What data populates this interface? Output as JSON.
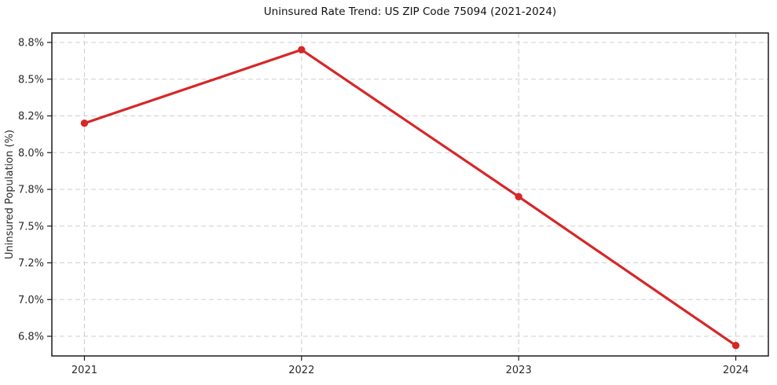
{
  "chart_data": {
    "type": "line",
    "title": "Uninsured Rate Trend: US ZIP Code 75094 (2021-2024)",
    "xlabel": "",
    "ylabel": "Uninsured Population (%)",
    "x": [
      2021,
      2022,
      2023,
      2024
    ],
    "x_tick_labels": [
      "2021",
      "2022",
      "2023",
      "2024"
    ],
    "xlim": [
      2020.85,
      2024.15
    ],
    "y_ticks": [
      {
        "label": "8.8%",
        "value": 8.8
      },
      {
        "label": "8.5%",
        "value": 8.5
      },
      {
        "label": "8.2%",
        "value": 8.2
      },
      {
        "label": "8.0%",
        "value": 8.0
      },
      {
        "label": "7.8%",
        "value": 7.8
      },
      {
        "label": "7.5%",
        "value": 7.5
      },
      {
        "label": "7.2%",
        "value": 7.2
      },
      {
        "label": "7.0%",
        "value": 7.0
      },
      {
        "label": "6.8%",
        "value": 6.8
      }
    ],
    "series": [
      {
        "name": "Uninsured Population (%)",
        "color": "#d62728",
        "marker": "circle",
        "points": [
          {
            "x": 2021,
            "y": 8.16
          },
          {
            "x": 2022,
            "y": 8.74
          },
          {
            "x": 2023,
            "y": 7.74
          },
          {
            "x": 2024,
            "y": 6.75
          }
        ]
      }
    ],
    "grid": true,
    "grid_style": "dashed",
    "legend": "none",
    "colors": {
      "line": "#d62728",
      "grid": "#cfcfcf",
      "spine": "#1a1a1a",
      "tick_label": "#2a2a2a",
      "title": "#111111"
    }
  }
}
